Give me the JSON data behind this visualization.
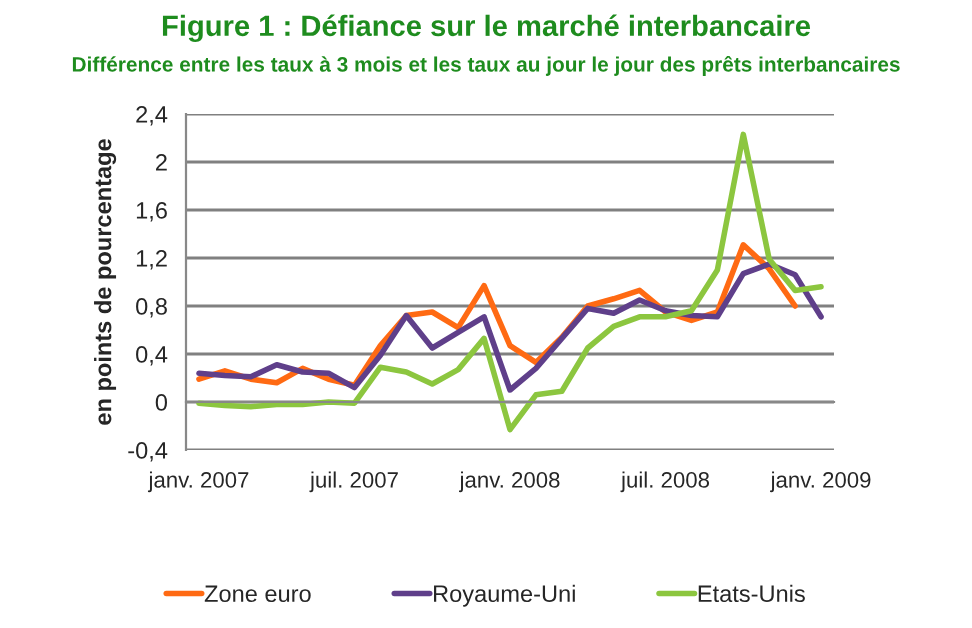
{
  "chart_data": {
    "type": "line",
    "title": "Figure 1 : Défiance sur le marché interbancaire",
    "subtitle": "Différence entre les taux à 3 mois et les taux au jour le jour des prêts interbancaires",
    "ylabel": "en points de pourcentage",
    "categories": [
      "janv. 2007",
      null,
      null,
      null,
      null,
      null,
      "juil. 2007",
      null,
      null,
      null,
      null,
      null,
      "janv. 2008",
      null,
      null,
      null,
      null,
      null,
      "juil. 2008",
      null,
      null,
      null,
      null,
      null,
      "janv. 2009"
    ],
    "series": [
      {
        "name": "Zone euro",
        "color": "#ff6a13",
        "values": [
          0.19,
          0.26,
          0.19,
          0.16,
          0.28,
          0.19,
          0.14,
          0.47,
          0.72,
          0.75,
          0.62,
          0.97,
          0.47,
          0.33,
          0.54,
          0.8,
          0.86,
          0.93,
          0.75,
          0.68,
          0.75,
          1.31,
          1.11,
          0.8,
          null
        ]
      },
      {
        "name": "Royaume-Uni",
        "color": "#5f3f8a",
        "values": [
          0.24,
          0.22,
          0.21,
          0.31,
          0.25,
          0.24,
          0.12,
          0.39,
          0.72,
          0.45,
          0.58,
          0.71,
          0.1,
          0.28,
          0.53,
          0.78,
          0.74,
          0.85,
          0.76,
          0.72,
          0.71,
          1.07,
          1.15,
          1.06,
          0.71
        ]
      },
      {
        "name": "Etats-Unis",
        "color": "#8cc63f",
        "values": [
          -0.01,
          -0.03,
          -0.04,
          -0.02,
          -0.02,
          0.0,
          -0.01,
          0.29,
          0.25,
          0.15,
          0.27,
          0.53,
          -0.23,
          0.06,
          0.09,
          0.45,
          0.63,
          0.71,
          0.71,
          0.76,
          1.1,
          2.23,
          1.19,
          0.93,
          0.96
        ]
      }
    ],
    "ylim": [
      -0.4,
      2.4
    ],
    "yticks": [
      {
        "value": -0.4,
        "label": "-0,4"
      },
      0,
      {
        "value": 0.4,
        "label": "0,4"
      },
      {
        "value": 0.8,
        "label": "0,8"
      },
      {
        "value": 1.2,
        "label": "1,2"
      },
      {
        "value": 1.6,
        "label": "1,6"
      },
      2,
      {
        "value": 2.4,
        "label": "2,4"
      }
    ],
    "grid": "y",
    "legend": "bottom",
    "marker": "none",
    "line_style": "solid"
  }
}
